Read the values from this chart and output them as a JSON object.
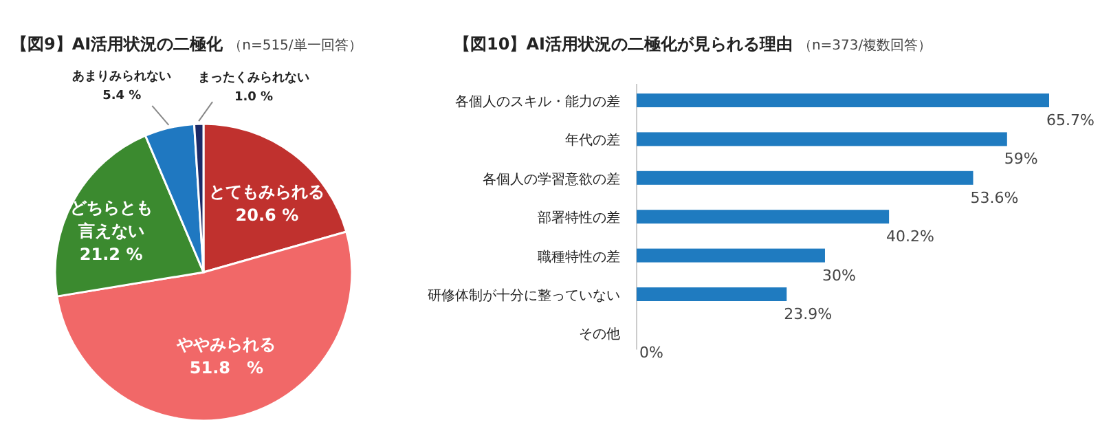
{
  "chart_data": [
    {
      "type": "pie",
      "title": "【図9】AI活用状況の二極化",
      "subtitle": "（n=515/単一回答）",
      "categories": [
        "とてもみられる",
        "ややみられる",
        "どちらとも言えない",
        "あまりみられない",
        "まったくみられない"
      ],
      "values": [
        20.6,
        51.8,
        21.2,
        5.4,
        1.0
      ],
      "colors": [
        "#c0312e",
        "#f16868",
        "#3b8a2f",
        "#1f78c1",
        "#1c2a66"
      ],
      "value_labels": [
        "20.6 %",
        "51.8　%",
        "21.2 %",
        "5.4 %",
        "1.0 %"
      ],
      "legend": false
    },
    {
      "type": "bar",
      "orientation": "horizontal",
      "relative": false,
      "title": "【図10】AI活用状況の二極化が見られる理由",
      "subtitle": "（n=373/複数回答）",
      "categories": [
        "各個人のスキル・能力の差",
        "年代の差",
        "各個人の学習意欲の差",
        "部署特性の差",
        "職種特性の差",
        "研修体制が十分に整っていない",
        "その他"
      ],
      "values": [
        65.7,
        59,
        53.6,
        40.2,
        30,
        23.9,
        0
      ],
      "color": "#1f7bc0",
      "value_labels": [
        "65.7%",
        "59%",
        "53.6%",
        "40.2%",
        "30%",
        "23.9%",
        "0%"
      ]
    }
  ]
}
